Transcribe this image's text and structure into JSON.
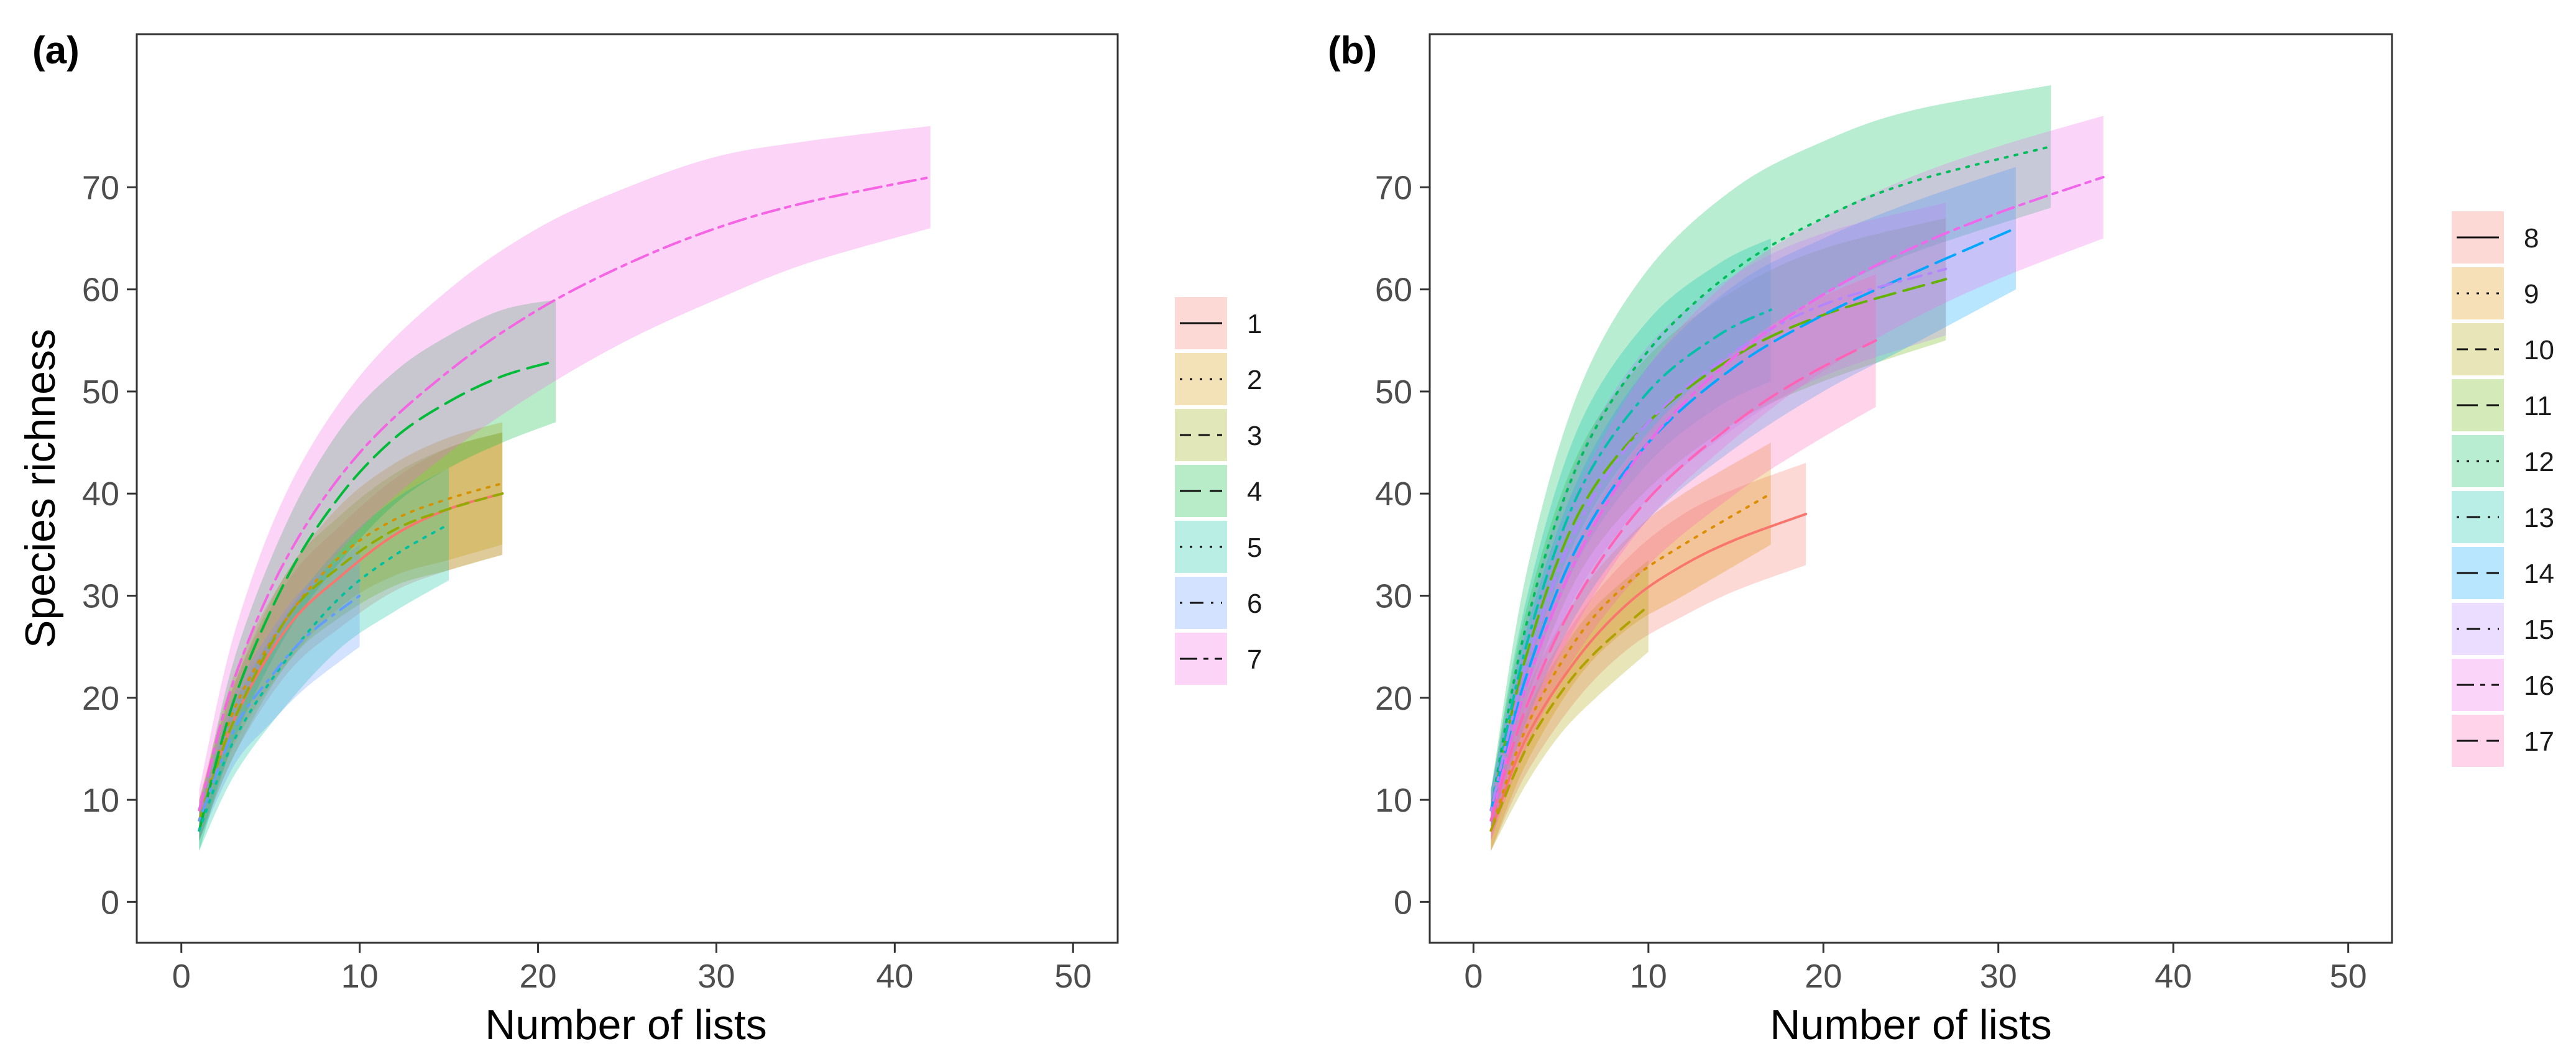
{
  "chart_data": [
    {
      "panel_label": "(a)",
      "type": "line",
      "xlabel": "Number of lists",
      "ylabel": "Species richness",
      "xlim": [
        -2.5,
        52.5
      ],
      "ylim": [
        -4,
        85
      ],
      "x_ticks": [
        0,
        10,
        20,
        30,
        40,
        50
      ],
      "y_ticks": [
        0,
        10,
        20,
        30,
        40,
        50,
        60,
        70
      ],
      "x_tick_labels": [
        "0",
        "10",
        "20",
        "30",
        "40",
        "50"
      ],
      "y_tick_labels": [
        "0",
        "10",
        "20",
        "30",
        "40",
        "50",
        "60",
        "70"
      ],
      "grid": false,
      "legend_position": "right",
      "series": [
        {
          "name": "1",
          "color": "#F8766D",
          "dash": "solid",
          "x": [
            1,
            3,
            6,
            9,
            12,
            15,
            18
          ],
          "y": [
            8,
            18,
            27,
            32,
            36,
            38.5,
            40
          ],
          "ci_width": [
            2,
            3.5,
            4.5,
            5,
            5.5,
            6,
            6
          ]
        },
        {
          "name": "2",
          "color": "#D39200",
          "dash": "dotted",
          "x": [
            1,
            3,
            6,
            9,
            12,
            15,
            18
          ],
          "y": [
            8,
            19,
            28,
            34,
            37.5,
            39.5,
            41
          ],
          "ci_width": [
            2,
            3.5,
            4.5,
            5,
            5.5,
            6,
            6
          ]
        },
        {
          "name": "3",
          "color": "#93AA00",
          "dash": "dashed",
          "x": [
            1,
            3,
            6,
            9,
            12,
            15,
            18
          ],
          "y": [
            8,
            18,
            28,
            33,
            36.5,
            38.5,
            40
          ],
          "ci_width": [
            2,
            3.5,
            4.5,
            5,
            5.5,
            6,
            6
          ]
        },
        {
          "name": "4",
          "color": "#00BA38",
          "dash": "longdash",
          "x": [
            1,
            3,
            6,
            9,
            12,
            15,
            18,
            21
          ],
          "y": [
            7,
            20,
            32,
            40,
            45.5,
            49,
            51.5,
            53
          ],
          "ci_width": [
            2,
            4,
            5.5,
            6.5,
            6.5,
            6.5,
            6.5,
            6
          ]
        },
        {
          "name": "5",
          "color": "#00C19F",
          "dash": "dotted",
          "x": [
            1,
            3,
            6,
            9,
            12,
            15
          ],
          "y": [
            7,
            16,
            24,
            30,
            34,
            37
          ],
          "ci_width": [
            2,
            3.5,
            4.5,
            5,
            5.5,
            5.5
          ]
        },
        {
          "name": "6",
          "color": "#619CFF",
          "dash": "dotdash",
          "x": [
            1,
            3,
            5,
            7,
            10
          ],
          "y": [
            8,
            17,
            22,
            26,
            30
          ],
          "ci_width": [
            2,
            3.5,
            4.5,
            5,
            5
          ]
        },
        {
          "name": "7",
          "color": "#F564E3",
          "dash": "twodash",
          "x": [
            1,
            3,
            6,
            10,
            15,
            20,
            25,
            30,
            35,
            42
          ],
          "y": [
            9,
            22,
            34,
            44,
            52,
            58,
            62.5,
            66,
            68.5,
            71
          ],
          "ci_width": [
            2,
            4.5,
            6.5,
            7.5,
            8,
            8,
            7.5,
            7,
            6,
            5
          ]
        }
      ]
    },
    {
      "panel_label": "(b)",
      "type": "line",
      "xlabel": "Number of lists",
      "ylabel": "",
      "xlim": [
        -2.5,
        52.5
      ],
      "ylim": [
        -4,
        85
      ],
      "x_ticks": [
        0,
        10,
        20,
        30,
        40,
        50
      ],
      "y_ticks": [
        0,
        10,
        20,
        30,
        40,
        50,
        60,
        70
      ],
      "x_tick_labels": [
        "0",
        "10",
        "20",
        "30",
        "40",
        "50"
      ],
      "y_tick_labels": [
        "0",
        "10",
        "20",
        "30",
        "40",
        "50",
        "60",
        "70"
      ],
      "grid": false,
      "legend_position": "right",
      "series": [
        {
          "name": "8",
          "color": "#F8766D",
          "dash": "solid",
          "x": [
            1,
            3,
            6,
            9,
            12,
            15,
            19
          ],
          "y": [
            7,
            16,
            24,
            29.5,
            33,
            35.5,
            38
          ],
          "ci_width": [
            2,
            3.5,
            4,
            4.5,
            5,
            5,
            5
          ]
        },
        {
          "name": "9",
          "color": "#DB8E00",
          "dash": "dotted",
          "x": [
            1,
            3,
            6,
            9,
            12,
            17
          ],
          "y": [
            7,
            17,
            26,
            31.5,
            35,
            40
          ],
          "ci_width": [
            2,
            3.5,
            4,
            4.5,
            5,
            5
          ]
        },
        {
          "name": "10",
          "color": "#AEA200",
          "dash": "dashed",
          "x": [
            1,
            3,
            5,
            7,
            10
          ],
          "y": [
            7,
            15,
            20.5,
            24.5,
            29
          ],
          "ci_width": [
            2,
            3.5,
            4,
            4.5,
            4.5
          ]
        },
        {
          "name": "11",
          "color": "#64B200",
          "dash": "longdash",
          "x": [
            1,
            3,
            6,
            10,
            15,
            20,
            27
          ],
          "y": [
            9,
            24,
            38,
            47,
            53.5,
            57.5,
            61
          ],
          "ci_width": [
            2,
            4.5,
            6,
            6.5,
            6.5,
            6.5,
            6
          ]
        },
        {
          "name": "12",
          "color": "#00BD5C",
          "dash": "dotted",
          "x": [
            1,
            3,
            6,
            10,
            15,
            20,
            25,
            33
          ],
          "y": [
            9,
            27,
            43,
            54,
            62,
            67,
            70.5,
            74
          ],
          "ci_width": [
            2,
            5,
            7,
            8,
            8,
            7.5,
            7,
            6
          ]
        },
        {
          "name": "13",
          "color": "#00C1A7",
          "dash": "dotdash",
          "x": [
            1,
            3,
            6,
            10,
            14,
            17
          ],
          "y": [
            9,
            25,
            40,
            50,
            55.5,
            58
          ],
          "ci_width": [
            2,
            4.5,
            6.5,
            7,
            7,
            7
          ]
        },
        {
          "name": "14",
          "color": "#00A6FF",
          "dash": "longdash",
          "x": [
            1,
            3,
            6,
            10,
            15,
            20,
            25,
            31
          ],
          "y": [
            9,
            22,
            35,
            45,
            52.5,
            57.5,
            61.5,
            66
          ],
          "ci_width": [
            2,
            4.5,
            6.5,
            7.5,
            8,
            7.5,
            7,
            6
          ]
        },
        {
          "name": "15",
          "color": "#B385FF",
          "dash": "dotdash",
          "x": [
            1,
            3,
            6,
            10,
            15,
            20,
            27
          ],
          "y": [
            9,
            23,
            37,
            47,
            54,
            58.5,
            62
          ],
          "ci_width": [
            2,
            4.5,
            6.5,
            7.5,
            7.5,
            7,
            6.5
          ]
        },
        {
          "name": "16",
          "color": "#EF67EB",
          "dash": "twodash",
          "x": [
            1,
            3,
            6,
            10,
            15,
            20,
            25,
            30,
            36
          ],
          "y": [
            8,
            21,
            34,
            45,
            53.5,
            59.5,
            64,
            67.5,
            71
          ],
          "ci_width": [
            2,
            4.5,
            6.5,
            7.5,
            8,
            7.5,
            7,
            6.5,
            6
          ]
        },
        {
          "name": "17",
          "color": "#FF63B6",
          "dash": "longdash",
          "x": [
            1,
            3,
            6,
            10,
            15,
            19,
            23
          ],
          "y": [
            8,
            19,
            30,
            39.5,
            47,
            51.5,
            55
          ],
          "ci_width": [
            2,
            4,
            5.5,
            6.5,
            7,
            7,
            6.5
          ]
        }
      ]
    }
  ]
}
